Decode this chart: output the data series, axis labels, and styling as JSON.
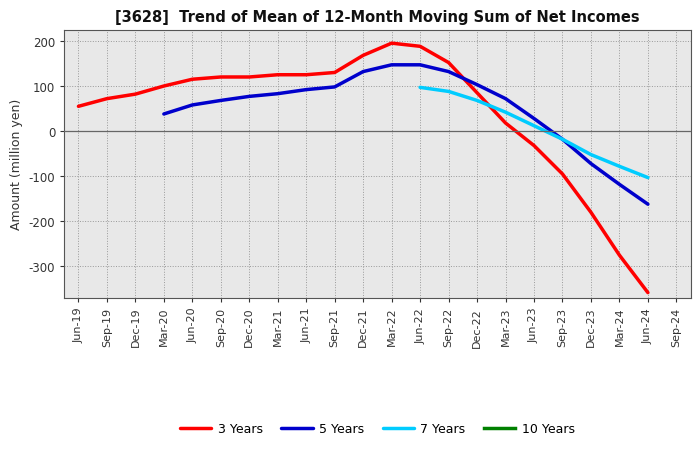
{
  "title": "[3628]  Trend of Mean of 12-Month Moving Sum of Net Incomes",
  "ylabel": "Amount (million yen)",
  "ylim": [
    -370,
    225
  ],
  "yticks": [
    -300,
    -200,
    -100,
    0,
    100,
    200
  ],
  "background_color": "#ffffff",
  "plot_bg_color": "#e8e8e8",
  "grid_color": "#999999",
  "x_labels": [
    "Jun-19",
    "Sep-19",
    "Dec-19",
    "Mar-20",
    "Jun-20",
    "Sep-20",
    "Dec-20",
    "Mar-21",
    "Jun-21",
    "Sep-21",
    "Dec-21",
    "Mar-22",
    "Jun-22",
    "Sep-22",
    "Dec-22",
    "Mar-23",
    "Jun-23",
    "Sep-23",
    "Dec-23",
    "Mar-24",
    "Jun-24",
    "Sep-24"
  ],
  "series": {
    "3 Years": {
      "color": "#ff0000",
      "values": [
        55,
        72,
        82,
        100,
        115,
        120,
        120,
        125,
        125,
        130,
        168,
        195,
        188,
        152,
        85,
        18,
        -32,
        -95,
        -180,
        -275,
        -358,
        null
      ]
    },
    "5 Years": {
      "color": "#0000cc",
      "values": [
        null,
        null,
        null,
        38,
        58,
        68,
        77,
        83,
        92,
        98,
        132,
        147,
        147,
        132,
        103,
        72,
        28,
        -18,
        -72,
        -118,
        -162,
        null
      ]
    },
    "7 Years": {
      "color": "#00ccff",
      "values": [
        null,
        null,
        null,
        null,
        null,
        null,
        null,
        null,
        null,
        null,
        null,
        null,
        97,
        88,
        68,
        42,
        12,
        -18,
        -52,
        -78,
        -103,
        null
      ]
    },
    "10 Years": {
      "color": "#008000",
      "values": [
        null,
        null,
        null,
        null,
        null,
        null,
        null,
        null,
        null,
        null,
        null,
        null,
        null,
        null,
        null,
        null,
        null,
        null,
        null,
        null,
        null,
        null
      ]
    }
  },
  "legend": {
    "entries": [
      "3 Years",
      "5 Years",
      "7 Years",
      "10 Years"
    ],
    "colors": [
      "#ff0000",
      "#0000cc",
      "#00ccff",
      "#008000"
    ]
  }
}
